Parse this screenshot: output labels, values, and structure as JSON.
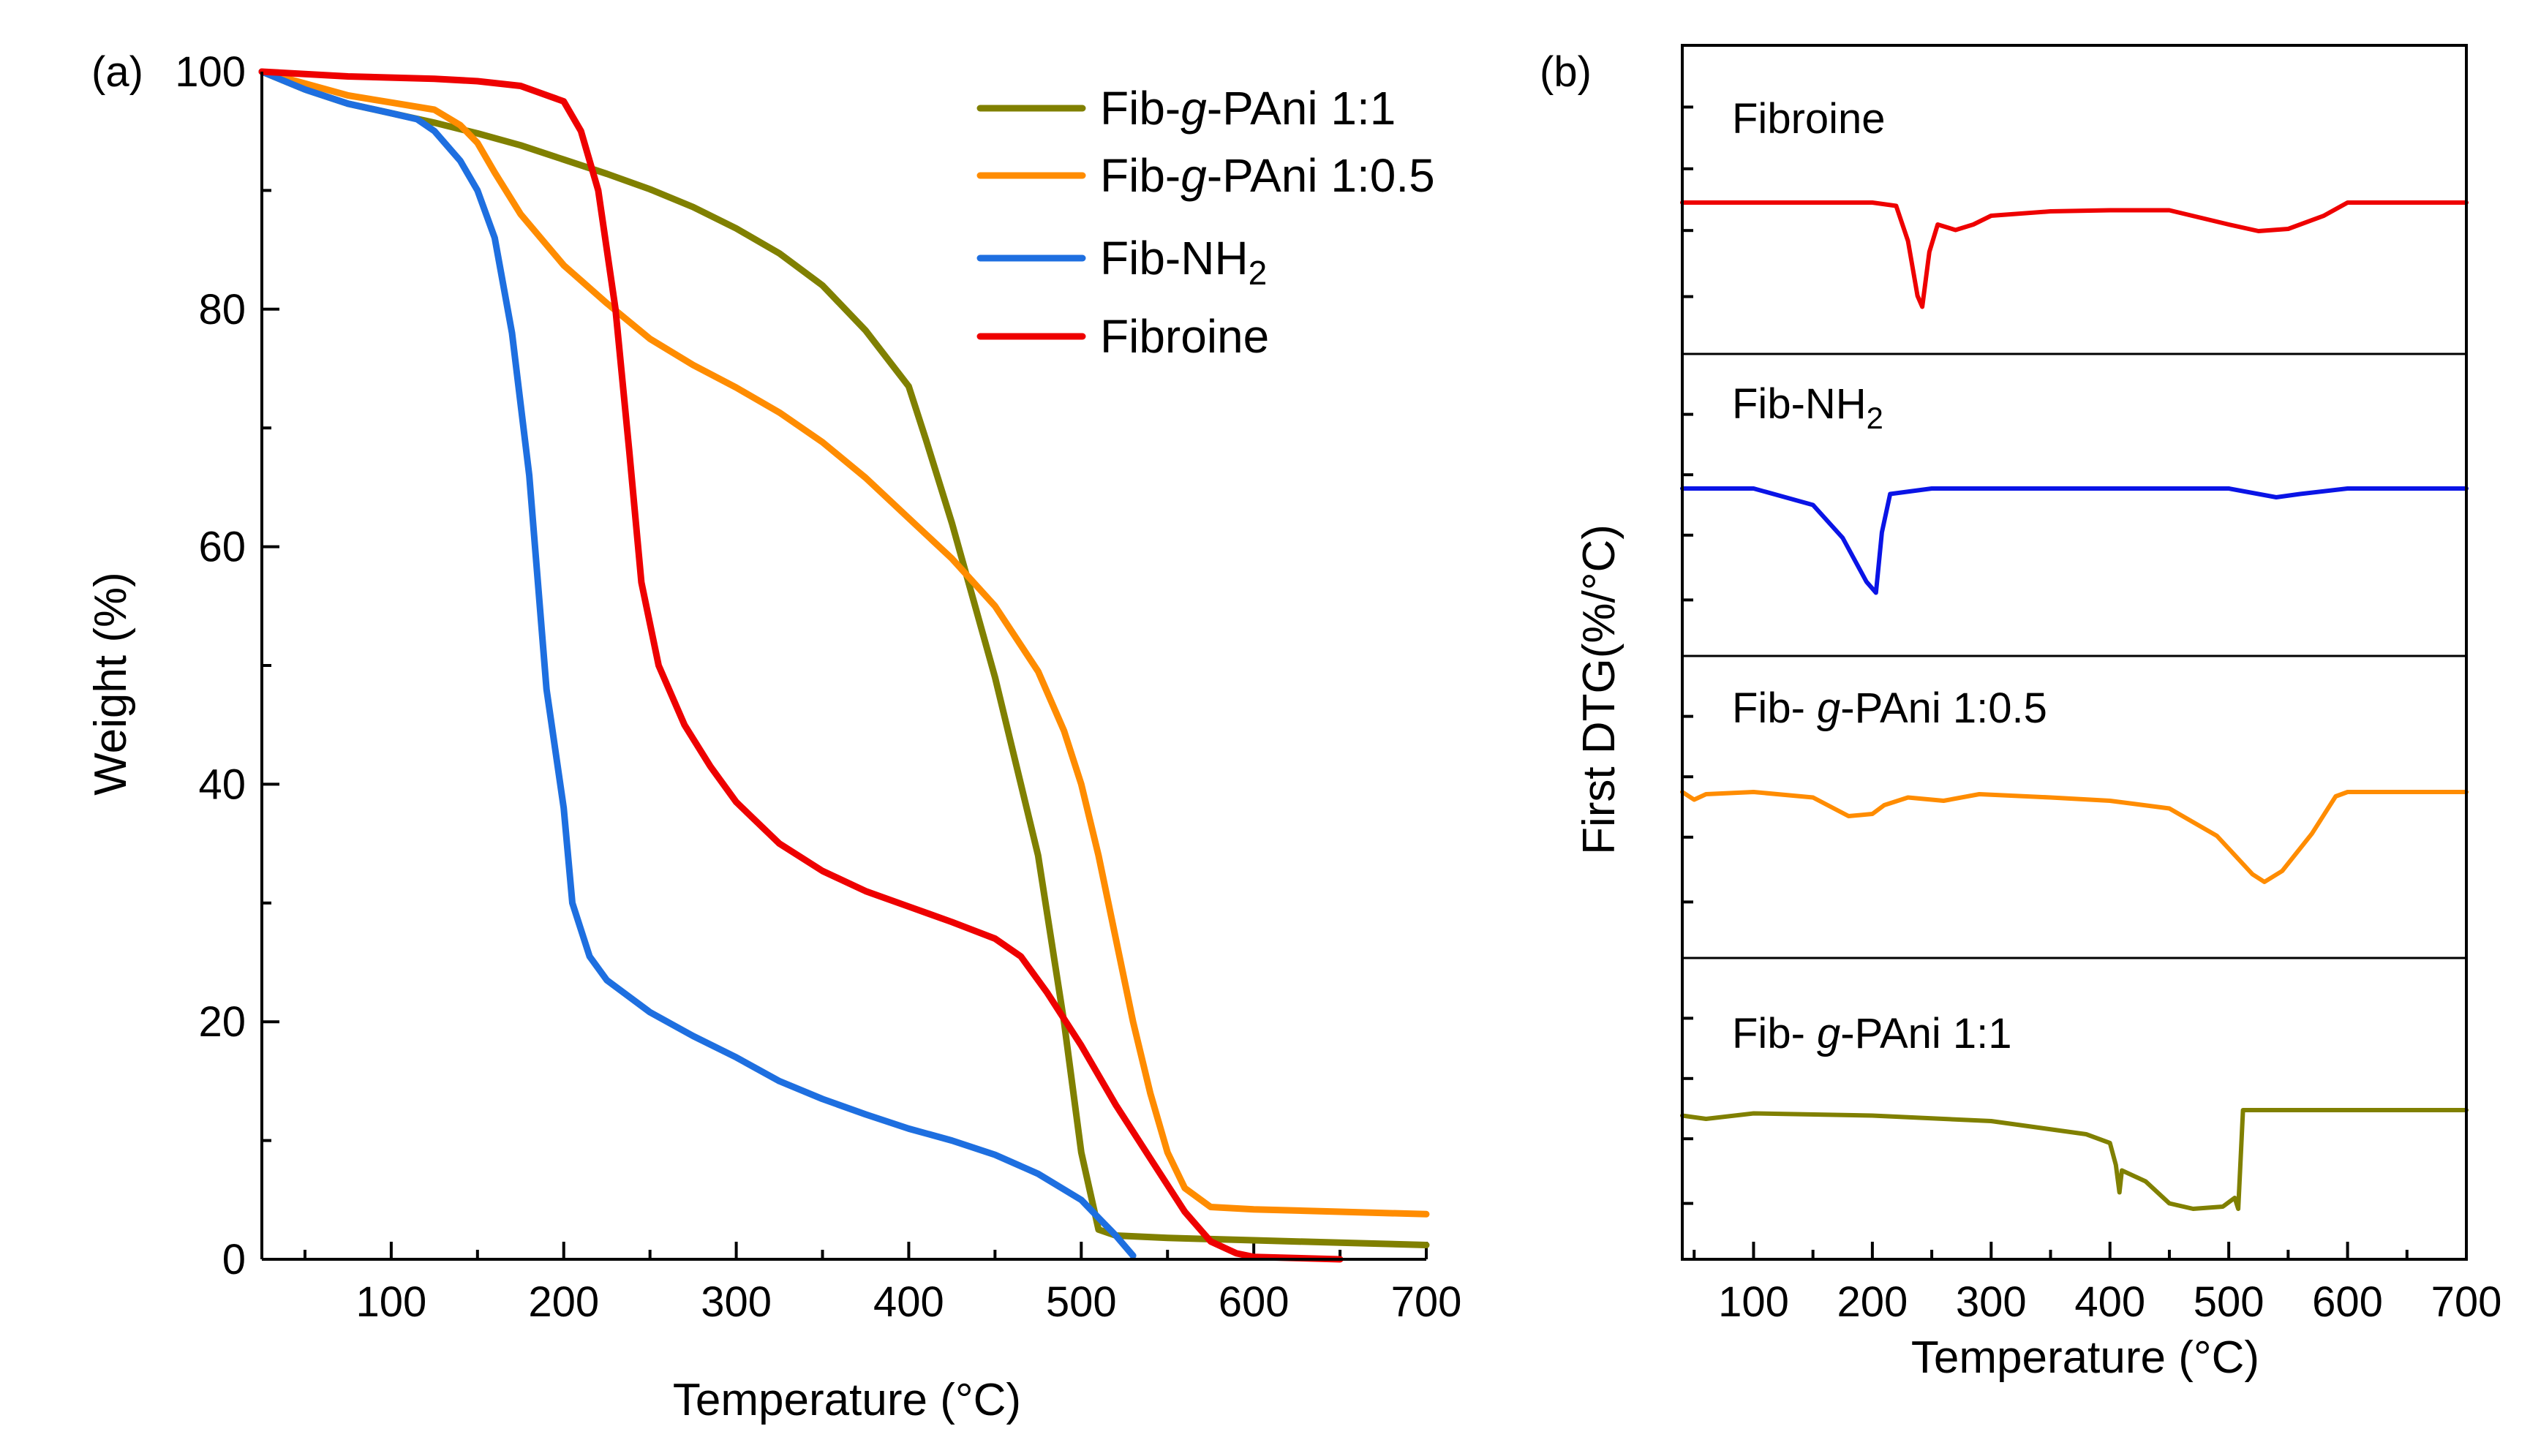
{
  "chart_data": [
    {
      "panel_label": "(a)",
      "type": "line",
      "xlabel": "Temperature (°C)",
      "ylabel": "Weight (%)",
      "xlim": [
        25,
        700
      ],
      "ylim": [
        0,
        100
      ],
      "x_ticks": [
        100,
        200,
        300,
        400,
        500,
        600,
        700
      ],
      "x_tick_labels": [
        "100",
        "200",
        "300",
        "400",
        "500",
        "600",
        "700"
      ],
      "y_ticks": [
        0,
        20,
        40,
        60,
        80,
        100
      ],
      "y_tick_labels": [
        "0",
        "20",
        "40",
        "60",
        "80",
        "100"
      ],
      "legend_position": "top-right",
      "series": [
        {
          "name": "Fib-g-PAni 1:1",
          "legend_parts": [
            "Fib-",
            "g",
            "-PAni 1:1"
          ],
          "color": "#808000",
          "points": [
            [
              25,
              100
            ],
            [
              50,
              98.5
            ],
            [
              75,
              97.3
            ],
            [
              100,
              96.5
            ],
            [
              125,
              95.7
            ],
            [
              150,
              94.8
            ],
            [
              175,
              93.8
            ],
            [
              200,
              92.6
            ],
            [
              225,
              91.4
            ],
            [
              250,
              90.1
            ],
            [
              275,
              88.6
            ],
            [
              300,
              86.8
            ],
            [
              325,
              84.7
            ],
            [
              350,
              82
            ],
            [
              375,
              78.2
            ],
            [
              400,
              73.5
            ],
            [
              410,
              69
            ],
            [
              425,
              62
            ],
            [
              450,
              49
            ],
            [
              475,
              34
            ],
            [
              490,
              20
            ],
            [
              500,
              9
            ],
            [
              510,
              2.5
            ],
            [
              520,
              2
            ],
            [
              550,
              1.8
            ],
            [
              600,
              1.6
            ],
            [
              650,
              1.4
            ],
            [
              700,
              1.2
            ]
          ]
        },
        {
          "name": "Fib-g-PAni 1:0.5",
          "legend_parts": [
            "Fib-",
            "g",
            "-PAni 1:0.5"
          ],
          "color": "#FF8C00",
          "points": [
            [
              25,
              100
            ],
            [
              50,
              99
            ],
            [
              75,
              98
            ],
            [
              100,
              97.4
            ],
            [
              125,
              96.8
            ],
            [
              140,
              95.5
            ],
            [
              150,
              94
            ],
            [
              160,
              91.5
            ],
            [
              175,
              88
            ],
            [
              200,
              83.7
            ],
            [
              225,
              80.5
            ],
            [
              250,
              77.5
            ],
            [
              275,
              75.3
            ],
            [
              300,
              73.4
            ],
            [
              325,
              71.3
            ],
            [
              350,
              68.8
            ],
            [
              375,
              65.8
            ],
            [
              400,
              62.4
            ],
            [
              425,
              59
            ],
            [
              450,
              55
            ],
            [
              475,
              49.5
            ],
            [
              490,
              44.5
            ],
            [
              500,
              40
            ],
            [
              510,
              34
            ],
            [
              520,
              27
            ],
            [
              530,
              20
            ],
            [
              540,
              14
            ],
            [
              550,
              9
            ],
            [
              560,
              6
            ],
            [
              575,
              4.4
            ],
            [
              600,
              4.2
            ],
            [
              650,
              4
            ],
            [
              700,
              3.8
            ]
          ]
        },
        {
          "name": "Fib-NH2",
          "legend_parts": [
            "Fib-NH",
            "2",
            ""
          ],
          "color": "#1E6FE0",
          "points": [
            [
              25,
              100
            ],
            [
              50,
              98.5
            ],
            [
              75,
              97.3
            ],
            [
              100,
              96.5
            ],
            [
              115,
              96
            ],
            [
              125,
              95
            ],
            [
              140,
              92.5
            ],
            [
              150,
              90
            ],
            [
              160,
              86
            ],
            [
              170,
              78
            ],
            [
              180,
              66
            ],
            [
              190,
              48
            ],
            [
              200,
              38
            ],
            [
              205,
              30
            ],
            [
              215,
              25.5
            ],
            [
              225,
              23.5
            ],
            [
              250,
              20.8
            ],
            [
              275,
              18.8
            ],
            [
              300,
              17
            ],
            [
              325,
              15
            ],
            [
              350,
              13.5
            ],
            [
              375,
              12.2
            ],
            [
              400,
              11
            ],
            [
              425,
              10
            ],
            [
              450,
              8.8
            ],
            [
              475,
              7.2
            ],
            [
              500,
              5
            ],
            [
              510,
              3.5
            ],
            [
              520,
              2
            ],
            [
              530,
              0.3
            ]
          ]
        },
        {
          "name": "Fibroine",
          "legend_parts": [
            "Fibroine",
            "",
            ""
          ],
          "color": "#EE0000",
          "points": [
            [
              25,
              100
            ],
            [
              50,
              99.8
            ],
            [
              75,
              99.6
            ],
            [
              100,
              99.5
            ],
            [
              125,
              99.4
            ],
            [
              150,
              99.2
            ],
            [
              175,
              98.8
            ],
            [
              200,
              97.5
            ],
            [
              210,
              95
            ],
            [
              220,
              90
            ],
            [
              230,
              80
            ],
            [
              238,
              68
            ],
            [
              245,
              57
            ],
            [
              255,
              50
            ],
            [
              270,
              45
            ],
            [
              285,
              41.5
            ],
            [
              300,
              38.5
            ],
            [
              325,
              35
            ],
            [
              350,
              32.7
            ],
            [
              375,
              31
            ],
            [
              400,
              29.7
            ],
            [
              425,
              28.4
            ],
            [
              450,
              27
            ],
            [
              465,
              25.5
            ],
            [
              480,
              22.5
            ],
            [
              500,
              18
            ],
            [
              520,
              13
            ],
            [
              540,
              8.5
            ],
            [
              560,
              4
            ],
            [
              575,
              1.5
            ],
            [
              590,
              0.5
            ],
            [
              600,
              0.2
            ],
            [
              650,
              0
            ]
          ]
        }
      ]
    },
    {
      "panel_label": "(b)",
      "type": "line",
      "xlabel": "Temperature (°C)",
      "ylabel": "First DTG(%/°C)",
      "xlim": [
        40,
        700
      ],
      "x_ticks": [
        100,
        200,
        300,
        400,
        500,
        600,
        700
      ],
      "x_tick_labels": [
        "100",
        "200",
        "300",
        "400",
        "500",
        "600",
        "700"
      ],
      "y_tick_labels_shown": false,
      "series": [
        {
          "name": "Fibroine",
          "label_parts": [
            "Fibroine",
            "",
            ""
          ],
          "color": "#EE0000",
          "relative_offset": [
            [
              40,
              0
            ],
            [
              100,
              0
            ],
            [
              200,
              0
            ],
            [
              220,
              -0.03
            ],
            [
              230,
              -0.35
            ],
            [
              238,
              -0.85
            ],
            [
              242,
              -0.95
            ],
            [
              248,
              -0.45
            ],
            [
              255,
              -0.2
            ],
            [
              270,
              -0.25
            ],
            [
              285,
              -0.2
            ],
            [
              300,
              -0.12
            ],
            [
              350,
              -0.08
            ],
            [
              400,
              -0.07
            ],
            [
              450,
              -0.07
            ],
            [
              500,
              -0.2
            ],
            [
              525,
              -0.26
            ],
            [
              550,
              -0.24
            ],
            [
              580,
              -0.12
            ],
            [
              600,
              0
            ],
            [
              700,
              0
            ]
          ]
        },
        {
          "name": "Fib-NH2",
          "label_parts": [
            "Fib-NH",
            "2",
            ""
          ],
          "color": "#0A14E6",
          "relative_offset": [
            [
              40,
              0
            ],
            [
              100,
              0
            ],
            [
              150,
              -0.15
            ],
            [
              175,
              -0.45
            ],
            [
              195,
              -0.85
            ],
            [
              203,
              -0.95
            ],
            [
              208,
              -0.4
            ],
            [
              215,
              -0.05
            ],
            [
              250,
              0
            ],
            [
              400,
              0
            ],
            [
              500,
              0
            ],
            [
              540,
              -0.08
            ],
            [
              560,
              -0.05
            ],
            [
              600,
              0
            ],
            [
              700,
              0
            ]
          ]
        },
        {
          "name": "Fib-g-PAni 1:0.5",
          "label_parts": [
            "Fib- ",
            "g",
            "-PAni 1:0.5"
          ],
          "color": "#FF8C00",
          "relative_offset": [
            [
              40,
              0
            ],
            [
              50,
              -0.07
            ],
            [
              60,
              -0.02
            ],
            [
              100,
              0
            ],
            [
              150,
              -0.05
            ],
            [
              180,
              -0.22
            ],
            [
              200,
              -0.2
            ],
            [
              210,
              -0.12
            ],
            [
              230,
              -0.05
            ],
            [
              260,
              -0.08
            ],
            [
              290,
              -0.02
            ],
            [
              350,
              -0.05
            ],
            [
              400,
              -0.08
            ],
            [
              450,
              -0.15
            ],
            [
              490,
              -0.4
            ],
            [
              520,
              -0.75
            ],
            [
              530,
              -0.82
            ],
            [
              545,
              -0.72
            ],
            [
              570,
              -0.38
            ],
            [
              590,
              -0.04
            ],
            [
              600,
              0
            ],
            [
              700,
              0
            ]
          ]
        },
        {
          "name": "Fib-g-PAni 1:1",
          "label_parts": [
            "Fib- ",
            "g",
            "-PAni 1:1"
          ],
          "color": "#808000",
          "relative_offset": [
            [
              40,
              -0.05
            ],
            [
              60,
              -0.08
            ],
            [
              100,
              -0.03
            ],
            [
              200,
              -0.05
            ],
            [
              300,
              -0.1
            ],
            [
              380,
              -0.22
            ],
            [
              400,
              -0.3
            ],
            [
              405,
              -0.5
            ],
            [
              408,
              -0.75
            ],
            [
              410,
              -0.55
            ],
            [
              430,
              -0.65
            ],
            [
              450,
              -0.85
            ],
            [
              470,
              -0.9
            ],
            [
              495,
              -0.88
            ],
            [
              505,
              -0.8
            ],
            [
              508,
              -0.9
            ],
            [
              512,
              0
            ],
            [
              700,
              0
            ]
          ]
        }
      ]
    }
  ]
}
